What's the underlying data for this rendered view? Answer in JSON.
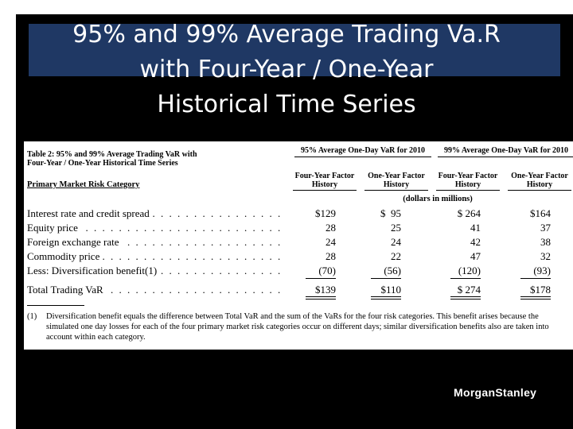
{
  "slide": {
    "title_lines": [
      "95% and 99% Average Trading Va.R",
      "with Four-Year / One-Year",
      "Historical Time Series"
    ]
  },
  "table": {
    "caption_lines": [
      "Table 2: 95% and 99% Average Trading VaR with",
      "Four-Year / One-Year Historical Time Series"
    ],
    "category_header": "Primary Market Risk Category",
    "group_headers": [
      "95% Average One-Day VaR for 2010",
      "99% Average One-Day VaR for 2010"
    ],
    "column_headers": [
      "Four-Year Factor History",
      "One-Year Factor History",
      "Four-Year Factor History",
      "One-Year Factor History"
    ],
    "units": "(dollars in millions)",
    "rows": [
      {
        "label": "Interest rate and credit spread",
        "values": [
          "$129",
          "$  95",
          "$ 264",
          "$164"
        ]
      },
      {
        "label": "Equity price",
        "values": [
          "28",
          "25",
          "41",
          "37"
        ]
      },
      {
        "label": "Foreign exchange rate",
        "values": [
          "24",
          "24",
          "42",
          "38"
        ]
      },
      {
        "label": "Commodity price",
        "values": [
          "28",
          "22",
          "47",
          "32"
        ]
      },
      {
        "label": "Less: Diversification benefit(1)",
        "values": [
          "(70)",
          "(56)",
          "(120)",
          "(93)"
        ]
      },
      {
        "label": "Total Trading VaR",
        "values": [
          "$139",
          "$110",
          "$ 274",
          "$178"
        ]
      }
    ],
    "footnote_mark": "(1)",
    "footnote_text": "Diversification benefit equals the difference between Total VaR and the sum of the VaRs for the four risk categories. This benefit arises because the simulated one day losses for each of the four primary market risk categories occur on different days; similar diversification benefits also are taken into account within each category."
  },
  "logo": {
    "text": "MorganStanley"
  },
  "colors": {
    "background": "#000000",
    "title_band": "#1f3864",
    "title_text": "#ffffff",
    "panel": "#ffffff"
  }
}
